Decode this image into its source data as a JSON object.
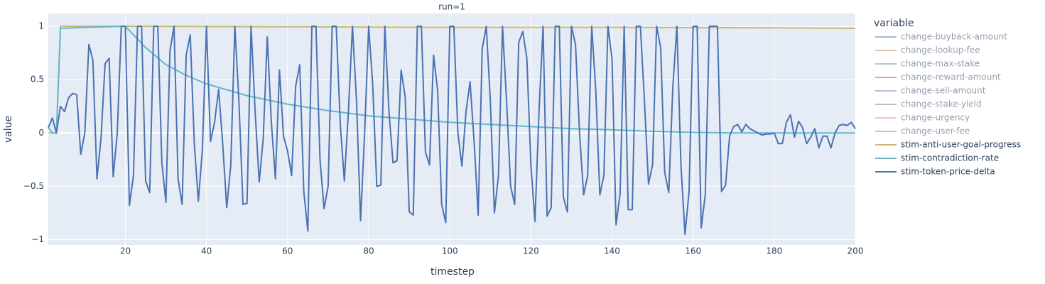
{
  "chart_data": {
    "type": "line",
    "title": "run=1",
    "x_label": "timestep",
    "y_label": "value",
    "legend_title": "variable",
    "xlim": [
      1,
      200
    ],
    "xticks": [
      20,
      40,
      60,
      80,
      100,
      120,
      140,
      160,
      180,
      200
    ],
    "ylim": [
      -1.05,
      1.12
    ],
    "yticks": [
      {
        "value": -1,
        "label": "−1"
      },
      {
        "value": -0.5,
        "label": "−0.5"
      },
      0,
      0.5,
      1
    ],
    "grid": true,
    "x": [
      1,
      2,
      3,
      4,
      5,
      6,
      7,
      8,
      9,
      10,
      11,
      12,
      13,
      14,
      15,
      16,
      17,
      18,
      19,
      20,
      21,
      22,
      23,
      24,
      25,
      26,
      27,
      28,
      29,
      30,
      31,
      32,
      33,
      34,
      35,
      36,
      37,
      38,
      39,
      40,
      41,
      42,
      43,
      44,
      45,
      46,
      47,
      48,
      49,
      50,
      51,
      52,
      53,
      54,
      55,
      56,
      57,
      58,
      59,
      60,
      61,
      62,
      63,
      64,
      65,
      66,
      67,
      68,
      69,
      70,
      71,
      72,
      73,
      74,
      75,
      76,
      77,
      78,
      79,
      80,
      81,
      82,
      83,
      84,
      85,
      86,
      87,
      88,
      89,
      90,
      91,
      92,
      93,
      94,
      95,
      96,
      97,
      98,
      99,
      100,
      101,
      102,
      103,
      104,
      105,
      106,
      107,
      108,
      109,
      110,
      111,
      112,
      113,
      114,
      115,
      116,
      117,
      118,
      119,
      120,
      121,
      122,
      123,
      124,
      125,
      126,
      127,
      128,
      129,
      130,
      131,
      132,
      133,
      134,
      135,
      136,
      137,
      138,
      139,
      140,
      141,
      142,
      143,
      144,
      145,
      146,
      147,
      148,
      149,
      150,
      151,
      152,
      153,
      154,
      155,
      156,
      157,
      158,
      159,
      160,
      161,
      162,
      163,
      164,
      165,
      166,
      167,
      168,
      169,
      170,
      171,
      172,
      173,
      174,
      175,
      176,
      177,
      178,
      179,
      180,
      181,
      182,
      183,
      184,
      185,
      186,
      187,
      188,
      189,
      190,
      191,
      192,
      193,
      194,
      195,
      196,
      197,
      198,
      199,
      200
    ],
    "series": [
      {
        "name": "change-buyback-amount",
        "color": "#4c72b0",
        "visible": "legendonly"
      },
      {
        "name": "change-lookup-fee",
        "color": "#dd8452",
        "visible": "legendonly"
      },
      {
        "name": "change-max-stake",
        "color": "#55a868",
        "visible": "legendonly"
      },
      {
        "name": "change-reward-amount",
        "color": "#c44e52",
        "visible": "legendonly"
      },
      {
        "name": "change-sell-amount",
        "color": "#8172b3",
        "visible": "legendonly"
      },
      {
        "name": "change-stake-yield",
        "color": "#937860",
        "visible": "legendonly"
      },
      {
        "name": "change-urgency",
        "color": "#da8bc3",
        "visible": "legendonly"
      },
      {
        "name": "change-user-fee",
        "color": "#8c8c8c",
        "visible": "legendonly"
      },
      {
        "name": "stim-anti-user-goal-progress",
        "color": "#ccb974",
        "x": [
          1,
          2,
          3,
          4,
          20,
          60,
          100,
          140,
          180,
          200
        ],
        "values": [
          0,
          0,
          0,
          1,
          1,
          0.995,
          0.99,
          0.99,
          0.985,
          0.98
        ]
      },
      {
        "name": "stim-contradiction-rate",
        "color": "#64b5cd",
        "x": [
          1,
          2,
          3,
          4,
          10,
          20,
          25,
          30,
          35,
          40,
          50,
          60,
          70,
          80,
          90,
          100,
          110,
          120,
          130,
          140,
          150,
          160,
          170,
          180,
          190,
          200
        ],
        "values": [
          0.05,
          0,
          0,
          0.98,
          0.99,
          1,
          0.8,
          0.64,
          0.54,
          0.46,
          0.35,
          0.27,
          0.21,
          0.16,
          0.13,
          0.1,
          0.08,
          0.06,
          0.04,
          0.03,
          0.015,
          0.005,
          0,
          0,
          0,
          0
        ]
      },
      {
        "name": "stim-token-price-delta",
        "color": "#4c72b0",
        "values": [
          0.05,
          0.14,
          0,
          0.25,
          0.2,
          0.33,
          0.37,
          0.36,
          -0.2,
          0,
          0.83,
          0.68,
          -0.43,
          -0.05,
          0.65,
          0.7,
          -0.41,
          0,
          1,
          1,
          -0.68,
          -0.4,
          1,
          1,
          -0.45,
          -0.56,
          1,
          1,
          -0.28,
          -0.65,
          0.77,
          1,
          -0.43,
          -0.67,
          0.73,
          0.92,
          -0.1,
          -0.64,
          -0.15,
          1,
          -0.08,
          0.1,
          0.41,
          -0.1,
          -0.7,
          -0.3,
          1,
          0.3,
          -0.67,
          -0.66,
          1,
          0.2,
          -0.46,
          -0.05,
          0.9,
          0.1,
          -0.43,
          0.59,
          -0.03,
          -0.17,
          -0.4,
          0.44,
          0.64,
          -0.55,
          -0.92,
          1,
          1,
          -0.25,
          -0.71,
          -0.5,
          1,
          1,
          0.08,
          -0.45,
          0.2,
          1,
          0.3,
          -0.82,
          0,
          1,
          0.45,
          -0.5,
          -0.49,
          1,
          0.2,
          -0.28,
          -0.26,
          0.59,
          0.34,
          -0.74,
          -0.77,
          1,
          1,
          -0.18,
          -0.3,
          0.73,
          0.4,
          -0.67,
          -0.84,
          1,
          1,
          0,
          -0.31,
          0.2,
          0.48,
          -0.08,
          -0.77,
          0.79,
          1,
          0.3,
          -0.75,
          -0.4,
          1,
          0.3,
          -0.5,
          -0.67,
          0.85,
          0.95,
          0.7,
          -0.3,
          -0.83,
          0.2,
          1,
          -0.78,
          -0.7,
          1,
          1,
          -0.6,
          -0.74,
          1,
          0.83,
          0,
          -0.58,
          -0.4,
          1,
          0.4,
          -0.58,
          -0.4,
          1,
          0.7,
          -0.86,
          -0.57,
          1,
          -0.72,
          -0.72,
          1,
          1,
          0.3,
          -0.48,
          -0.3,
          1,
          0.8,
          -0.37,
          -0.56,
          0.43,
          1,
          -0.3,
          -0.95,
          -0.55,
          1,
          1,
          -0.89,
          -0.58,
          1,
          1,
          1,
          -0.55,
          -0.49,
          -0.03,
          0.06,
          0.08,
          0.01,
          0.08,
          0.04,
          0.02,
          0,
          -0.02,
          -0.01,
          -0.01,
          0,
          -0.1,
          -0.1,
          0.1,
          0.17,
          -0.04,
          0.11,
          0.05,
          -0.1,
          -0.04,
          0.04,
          -0.14,
          -0.03,
          -0.03,
          -0.14,
          0,
          0.07,
          0.08,
          0.07,
          0.1,
          0.04
        ]
      }
    ]
  }
}
